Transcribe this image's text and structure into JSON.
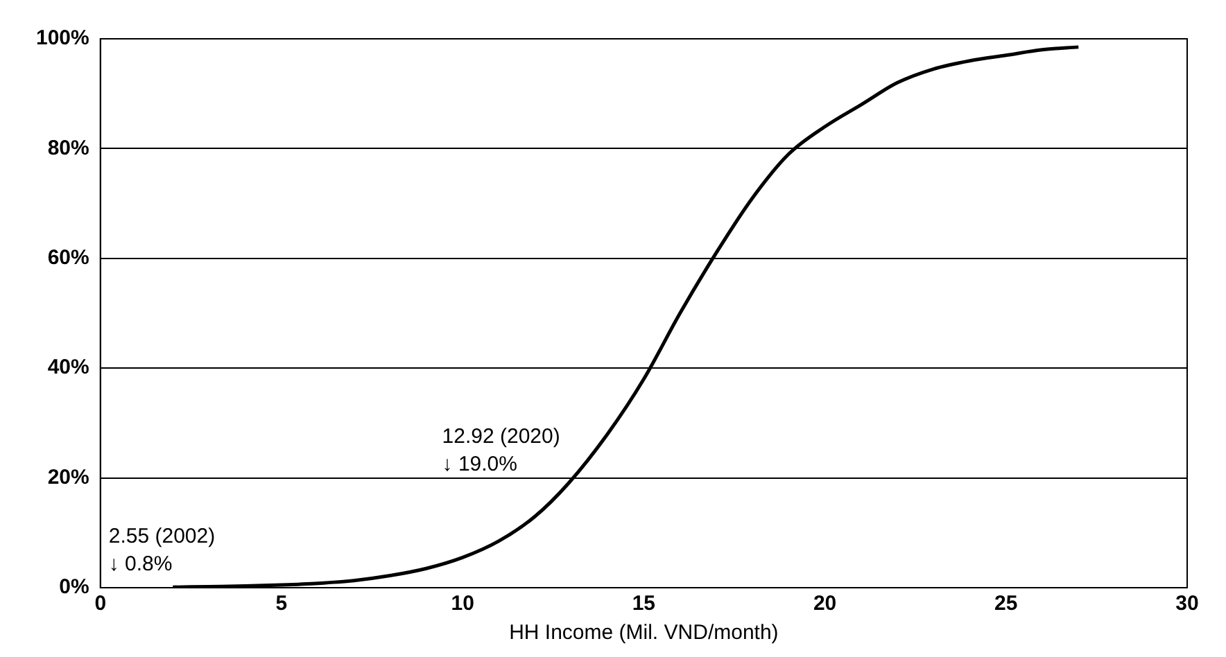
{
  "chart_data": {
    "type": "line",
    "xlabel": "HH Income (Mil. VND/month)",
    "x": [
      2,
      3,
      4,
      5,
      6,
      7,
      8,
      9,
      10,
      11,
      12,
      12.92,
      14,
      15,
      16,
      17,
      18,
      19,
      20,
      21,
      22,
      23,
      24,
      25,
      26,
      27
    ],
    "series": [
      {
        "color": "#000000",
        "values": [
          0.1,
          0.2,
          0.3,
          0.5,
          0.8,
          1.3,
          2.2,
          3.5,
          5.5,
          8.5,
          13,
          19,
          28,
          38,
          50,
          61,
          71,
          79,
          84,
          88,
          92,
          94.5,
          96,
          97,
          98,
          98.5
        ]
      }
    ],
    "xlim": [
      0,
      30
    ],
    "xticks": [
      0,
      5,
      10,
      15,
      20,
      25,
      30
    ],
    "ylim": [
      0,
      100
    ],
    "yticks": [
      {
        "value": 0,
        "label": "0%"
      },
      {
        "value": 20,
        "label": "20%"
      },
      {
        "value": 40,
        "label": "40%"
      },
      {
        "value": 60,
        "label": "60%"
      },
      {
        "value": 80,
        "label": "80%"
      },
      {
        "value": 100,
        "label": "100%"
      }
    ],
    "grid": "y",
    "marker": "none",
    "line_style": "solid",
    "legend": false,
    "annotations": [
      {
        "text": "2.55 (2002)\n↓ 0.8%",
        "x": 2.55,
        "y": 0.8
      },
      {
        "text": "12.92 (2020)\n↓ 19.0%",
        "x": 12.92,
        "y": 19
      }
    ]
  }
}
